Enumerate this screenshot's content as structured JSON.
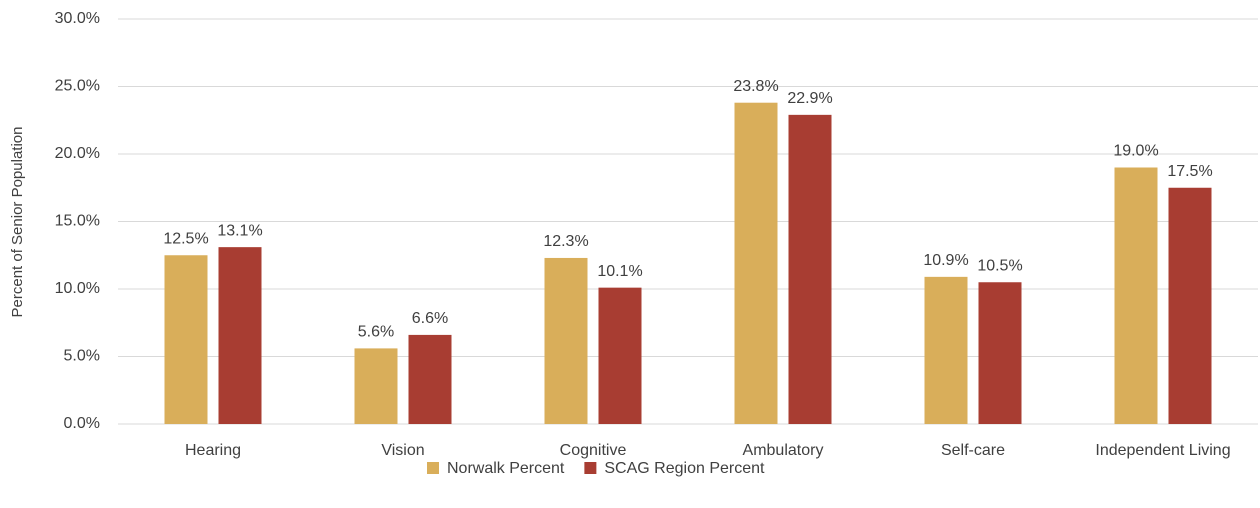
{
  "chart_data": {
    "type": "bar",
    "y_label": "Percent of Senior Population",
    "categories": [
      "Hearing",
      "Vision",
      "Cognitive",
      "Ambulatory",
      "Self-care",
      "Independent Living"
    ],
    "series": [
      {
        "name": "Norwalk Percent",
        "color": "#d9ae5a",
        "values": [
          12.5,
          5.6,
          12.3,
          23.8,
          10.9,
          19.0
        ],
        "value_labels": [
          "12.5%",
          "5.6%",
          "12.3%",
          "23.8%",
          "10.9%",
          "19.0%"
        ]
      },
      {
        "name": "SCAG Region Percent",
        "color": "#a83d32",
        "values": [
          13.1,
          6.6,
          10.1,
          22.9,
          10.5,
          17.5
        ],
        "value_labels": [
          "13.1%",
          "6.6%",
          "10.1%",
          "22.9%",
          "10.5%",
          "17.5%"
        ]
      }
    ],
    "ylim": [
      0,
      30
    ],
    "yticks": [
      {
        "value": 0,
        "label": "0.0%"
      },
      {
        "value": 5,
        "label": "5.0%"
      },
      {
        "value": 10,
        "label": "10.0%"
      },
      {
        "value": 15,
        "label": "15.0%"
      },
      {
        "value": 20,
        "label": "20.0%"
      },
      {
        "value": 25,
        "label": "25.0%"
      },
      {
        "value": 30,
        "label": "30.0%"
      }
    ],
    "grid": true,
    "legend": "bottom"
  }
}
